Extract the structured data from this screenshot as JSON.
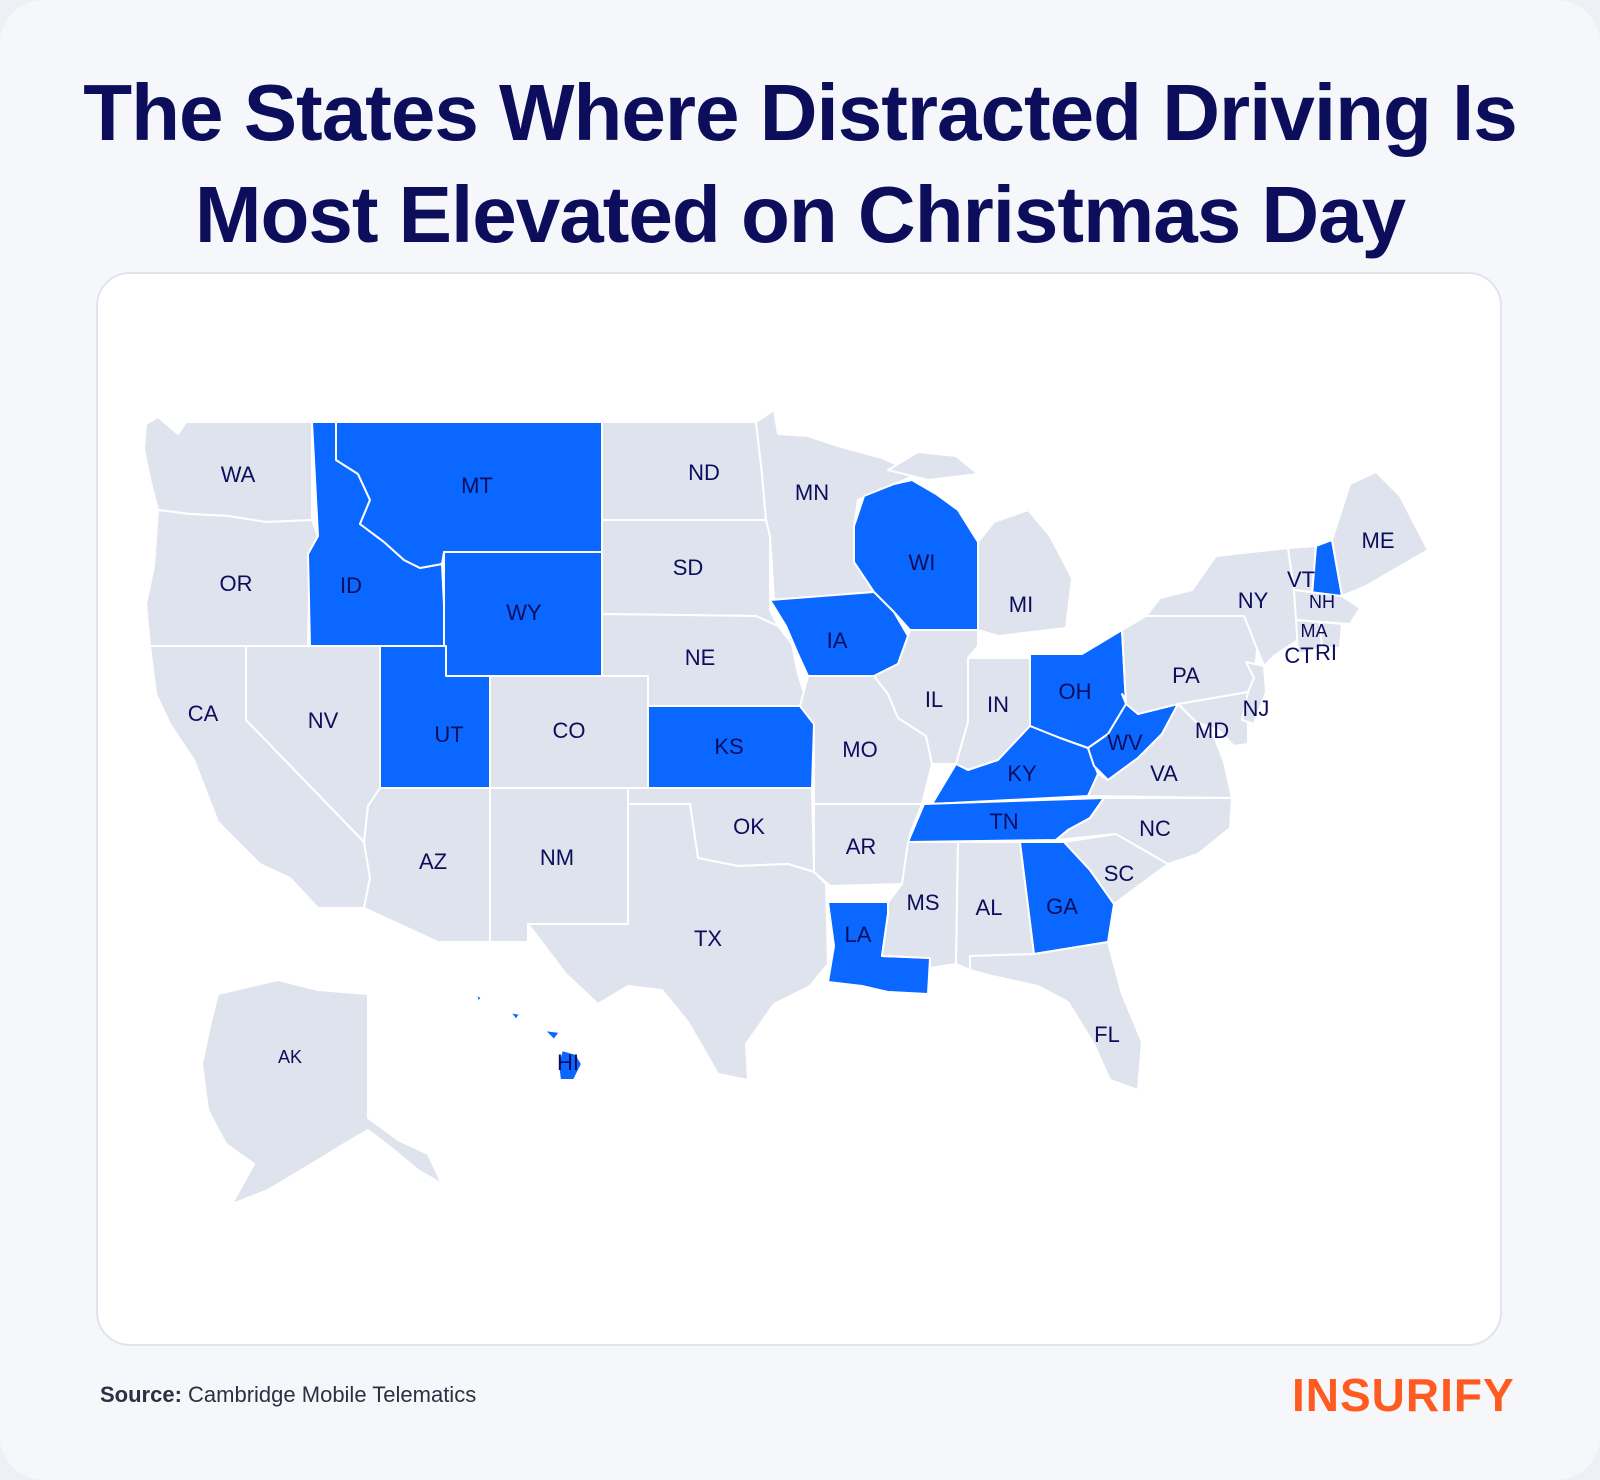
{
  "title": {
    "line1": "The States Where Distracted Driving Is",
    "line2": "Most Elevated on Christmas Day"
  },
  "colors": {
    "highlight": "#0a67ff",
    "default": "#dfe3ee",
    "title": "#0c0e5c",
    "brand": "#ff5a1f"
  },
  "map": {
    "highlighted_states": [
      "MT",
      "ID",
      "WY",
      "UT",
      "KS",
      "IA",
      "WI",
      "OH",
      "KY",
      "WV",
      "TN",
      "GA",
      "LA",
      "NH",
      "HI"
    ],
    "labels": {
      "WA": "WA",
      "OR": "OR",
      "CA": "CA",
      "NV": "NV",
      "ID": "ID",
      "MT": "MT",
      "WY": "WY",
      "UT": "UT",
      "AZ": "AZ",
      "CO": "CO",
      "NM": "NM",
      "ND": "ND",
      "SD": "SD",
      "NE": "NE",
      "KS": "KS",
      "OK": "OK",
      "TX": "TX",
      "MN": "MN",
      "IA": "IA",
      "MO": "MO",
      "AR": "AR",
      "LA": "LA",
      "WI": "WI",
      "IL": "IL",
      "MI": "MI",
      "IN": "IN",
      "OH": "OH",
      "KY": "KY",
      "TN": "TN",
      "MS": "MS",
      "AL": "AL",
      "GA": "GA",
      "FL": "FL",
      "SC": "SC",
      "NC": "NC",
      "VA": "VA",
      "WV": "WV",
      "MD": "MD",
      "PA": "PA",
      "NJ": "NJ",
      "NY": "NY",
      "VT": "VT",
      "NH": "NH",
      "ME": "ME",
      "MA": "MA",
      "CT": "CT",
      "RI": "RI",
      "AK": "AK",
      "HI": "HI"
    }
  },
  "source": {
    "label": "Source:",
    "text": " Cambridge Mobile Telematics"
  },
  "brand": {
    "logo_text": "INSURIFY"
  }
}
